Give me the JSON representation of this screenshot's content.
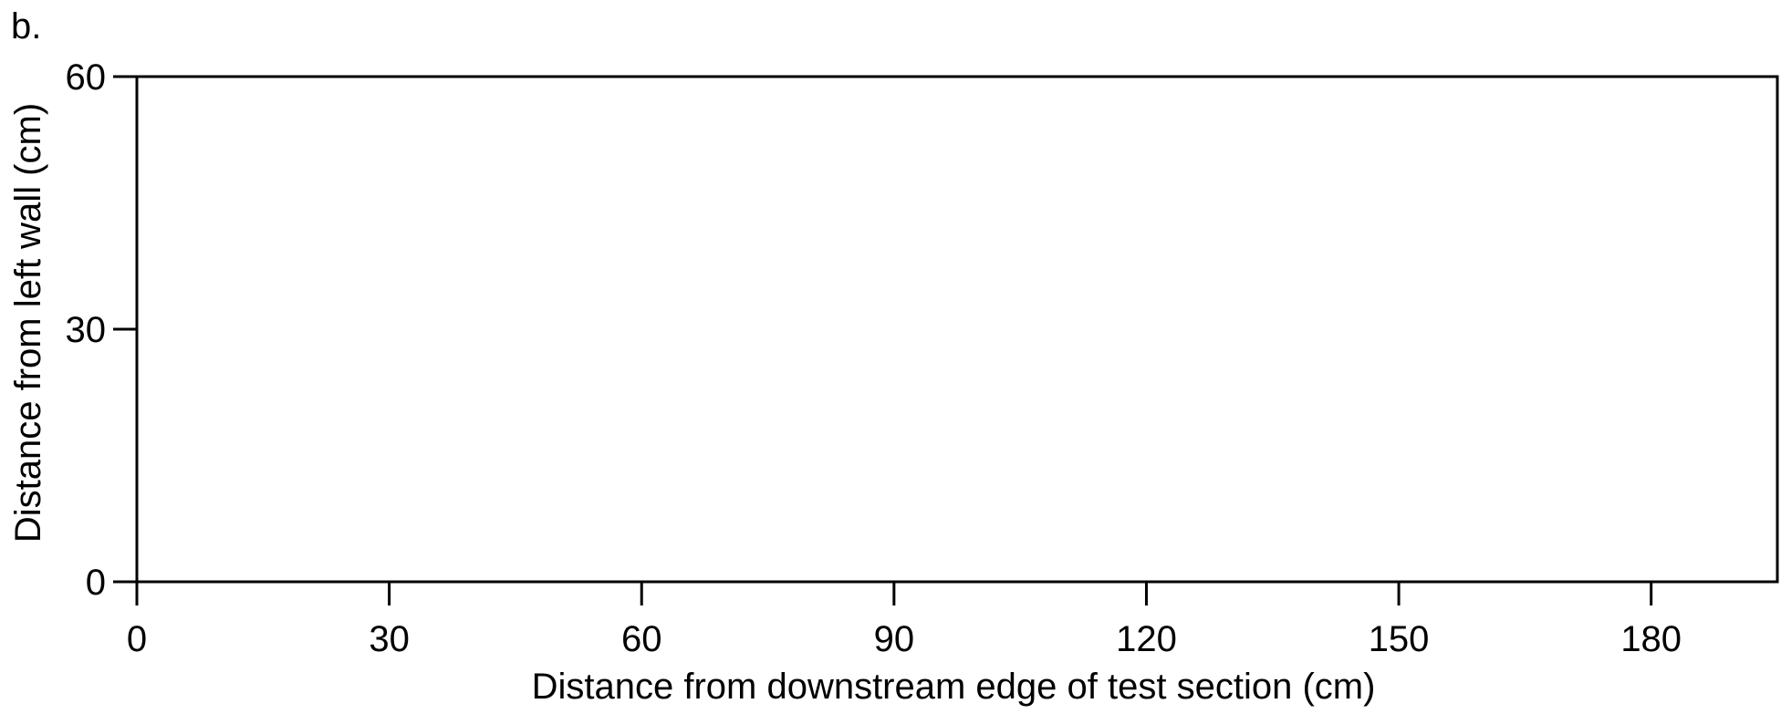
{
  "panel_label": "b.",
  "chart_data": {
    "type": "scatter",
    "title": "",
    "xlabel": "Distance from downstream edge of test section (cm)",
    "ylabel": "Distance from left wall (cm)",
    "xlim": [
      0,
      195
    ],
    "ylim": [
      0,
      60
    ],
    "xticks": [
      0,
      30,
      60,
      90,
      120,
      150,
      180
    ],
    "yticks": [
      0,
      30,
      60
    ],
    "xtick_labels": [
      "0",
      "30",
      "60",
      "90",
      "120",
      "150",
      "180"
    ],
    "ytick_labels": [
      "0",
      "30",
      "60"
    ],
    "series": [],
    "grid": false,
    "legend": "none"
  }
}
